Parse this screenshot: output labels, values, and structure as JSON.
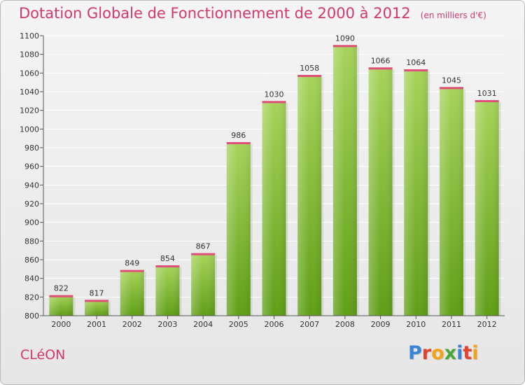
{
  "title": "Dotation Globale de Fonctionnement de 2000 à 2012",
  "unit": "(en milliers d'€)",
  "city": "CLéON",
  "logo": [
    "P",
    "r",
    "o",
    "x",
    "i",
    "t",
    "i"
  ],
  "logo_colors": [
    "#3a86d6",
    "#e0442e",
    "#f2a21b",
    "#4aa63a",
    "#3a86d6",
    "#e0442e",
    "#f2a21b"
  ],
  "colors": {
    "title": "#d2396b",
    "bar_light": "#a6d45a",
    "bar_dark": "#5f9e16",
    "grid": "#ffffff"
  },
  "chart_data": {
    "type": "bar",
    "categories": [
      "2000",
      "2001",
      "2002",
      "2003",
      "2004",
      "2005",
      "2006",
      "2007",
      "2008",
      "2009",
      "2010",
      "2011",
      "2012"
    ],
    "values": [
      822,
      817,
      849,
      854,
      867,
      986,
      1030,
      1058,
      1090,
      1066,
      1064,
      1045,
      1031
    ],
    "data_labels": [
      "822",
      "817",
      "849",
      "854",
      "867",
      "986",
      "1030",
      "1058",
      "1090",
      "1066",
      "1064",
      "1045",
      "1031"
    ],
    "ylim": [
      800,
      1100
    ],
    "yticks": [
      800,
      820,
      840,
      860,
      880,
      900,
      920,
      940,
      960,
      980,
      1000,
      1020,
      1040,
      1060,
      1080,
      1100
    ],
    "grid": true
  }
}
